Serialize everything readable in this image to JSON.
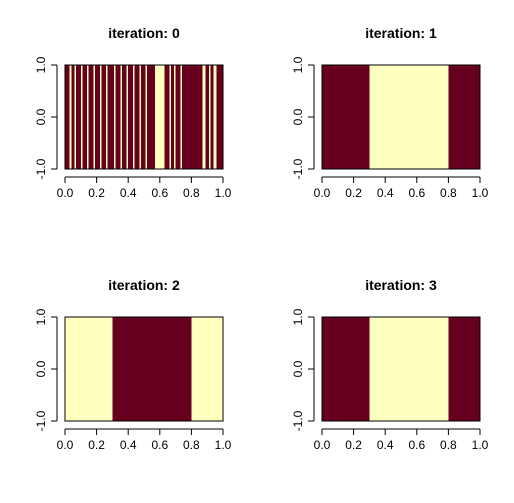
{
  "colors": {
    "dark": "#67001F",
    "light": "#FFFFBF",
    "frame": "#000000"
  },
  "chart_data": [
    {
      "type": "heatmap",
      "title": "iteration: 0",
      "xlim": [
        0,
        1
      ],
      "ylim": [
        -1,
        1
      ],
      "x_ticks": [
        "0.0",
        "0.2",
        "0.4",
        "0.6",
        "0.8",
        "1.0"
      ],
      "y_ticks": [
        "-1.0",
        "0.0",
        "1.0"
      ],
      "bands": [
        {
          "start": 0.0,
          "end": 0.03,
          "state": "dark"
        },
        {
          "start": 0.03,
          "end": 0.04,
          "state": "light"
        },
        {
          "start": 0.04,
          "end": 0.06,
          "state": "dark"
        },
        {
          "start": 0.06,
          "end": 0.07,
          "state": "light"
        },
        {
          "start": 0.07,
          "end": 0.1,
          "state": "dark"
        },
        {
          "start": 0.1,
          "end": 0.11,
          "state": "light"
        },
        {
          "start": 0.11,
          "end": 0.14,
          "state": "dark"
        },
        {
          "start": 0.14,
          "end": 0.15,
          "state": "light"
        },
        {
          "start": 0.15,
          "end": 0.18,
          "state": "dark"
        },
        {
          "start": 0.18,
          "end": 0.19,
          "state": "light"
        },
        {
          "start": 0.19,
          "end": 0.22,
          "state": "dark"
        },
        {
          "start": 0.22,
          "end": 0.23,
          "state": "light"
        },
        {
          "start": 0.23,
          "end": 0.26,
          "state": "dark"
        },
        {
          "start": 0.26,
          "end": 0.27,
          "state": "light"
        },
        {
          "start": 0.27,
          "end": 0.31,
          "state": "dark"
        },
        {
          "start": 0.31,
          "end": 0.32,
          "state": "light"
        },
        {
          "start": 0.32,
          "end": 0.35,
          "state": "dark"
        },
        {
          "start": 0.35,
          "end": 0.36,
          "state": "light"
        },
        {
          "start": 0.36,
          "end": 0.39,
          "state": "dark"
        },
        {
          "start": 0.39,
          "end": 0.4,
          "state": "light"
        },
        {
          "start": 0.4,
          "end": 0.43,
          "state": "dark"
        },
        {
          "start": 0.43,
          "end": 0.44,
          "state": "light"
        },
        {
          "start": 0.44,
          "end": 0.47,
          "state": "dark"
        },
        {
          "start": 0.47,
          "end": 0.48,
          "state": "light"
        },
        {
          "start": 0.48,
          "end": 0.51,
          "state": "dark"
        },
        {
          "start": 0.51,
          "end": 0.52,
          "state": "light"
        },
        {
          "start": 0.52,
          "end": 0.57,
          "state": "dark"
        },
        {
          "start": 0.57,
          "end": 0.63,
          "state": "light"
        },
        {
          "start": 0.63,
          "end": 0.66,
          "state": "dark"
        },
        {
          "start": 0.66,
          "end": 0.67,
          "state": "light"
        },
        {
          "start": 0.67,
          "end": 0.69,
          "state": "dark"
        },
        {
          "start": 0.69,
          "end": 0.7,
          "state": "light"
        },
        {
          "start": 0.7,
          "end": 0.73,
          "state": "dark"
        },
        {
          "start": 0.73,
          "end": 0.74,
          "state": "light"
        },
        {
          "start": 0.74,
          "end": 0.87,
          "state": "dark"
        },
        {
          "start": 0.87,
          "end": 0.89,
          "state": "light"
        },
        {
          "start": 0.89,
          "end": 0.91,
          "state": "dark"
        },
        {
          "start": 0.91,
          "end": 0.92,
          "state": "light"
        },
        {
          "start": 0.92,
          "end": 0.94,
          "state": "dark"
        },
        {
          "start": 0.94,
          "end": 0.96,
          "state": "light"
        },
        {
          "start": 0.96,
          "end": 1.0,
          "state": "dark"
        }
      ]
    },
    {
      "type": "heatmap",
      "title": "iteration: 1",
      "xlim": [
        0,
        1
      ],
      "ylim": [
        -1,
        1
      ],
      "x_ticks": [
        "0.0",
        "0.2",
        "0.4",
        "0.6",
        "0.8",
        "1.0"
      ],
      "y_ticks": [
        "-1.0",
        "0.0",
        "1.0"
      ],
      "bands": [
        {
          "start": 0.0,
          "end": 0.3,
          "state": "dark"
        },
        {
          "start": 0.3,
          "end": 0.8,
          "state": "light"
        },
        {
          "start": 0.8,
          "end": 1.0,
          "state": "dark"
        }
      ]
    },
    {
      "type": "heatmap",
      "title": "iteration: 2",
      "xlim": [
        0,
        1
      ],
      "ylim": [
        -1,
        1
      ],
      "x_ticks": [
        "0.0",
        "0.2",
        "0.4",
        "0.6",
        "0.8",
        "1.0"
      ],
      "y_ticks": [
        "-1.0",
        "0.0",
        "1.0"
      ],
      "bands": [
        {
          "start": 0.0,
          "end": 0.3,
          "state": "light"
        },
        {
          "start": 0.3,
          "end": 0.8,
          "state": "dark"
        },
        {
          "start": 0.8,
          "end": 1.0,
          "state": "light"
        }
      ]
    },
    {
      "type": "heatmap",
      "title": "iteration: 3",
      "xlim": [
        0,
        1
      ],
      "ylim": [
        -1,
        1
      ],
      "x_ticks": [
        "0.0",
        "0.2",
        "0.4",
        "0.6",
        "0.8",
        "1.0"
      ],
      "y_ticks": [
        "-1.0",
        "0.0",
        "1.0"
      ],
      "bands": [
        {
          "start": 0.0,
          "end": 0.3,
          "state": "dark"
        },
        {
          "start": 0.3,
          "end": 0.8,
          "state": "light"
        },
        {
          "start": 0.8,
          "end": 1.0,
          "state": "dark"
        }
      ]
    }
  ]
}
